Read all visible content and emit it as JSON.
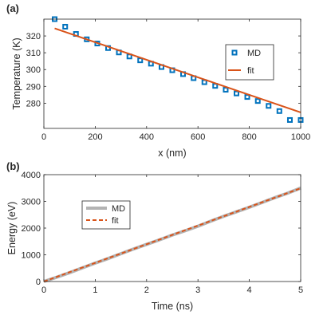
{
  "chart_data": [
    {
      "panel_label": "(a)",
      "type": "scatter",
      "xlabel": "x (nm)",
      "ylabel": "Temperature (K)",
      "xlim": [
        0,
        1000
      ],
      "ylim": [
        265,
        330
      ],
      "xticks": [
        0,
        200,
        400,
        600,
        800,
        1000
      ],
      "yticks": [
        280,
        290,
        300,
        310,
        320
      ],
      "legend_position": "top-right",
      "grid": false,
      "series": [
        {
          "name": "MD",
          "kind": "markers",
          "color": "#0072BD",
          "x": [
            42,
            83,
            125,
            167,
            208,
            250,
            292,
            333,
            375,
            417,
            458,
            500,
            542,
            583,
            625,
            667,
            708,
            750,
            792,
            833,
            875,
            917,
            958,
            1000
          ],
          "y": [
            330.0,
            325.5,
            321.2,
            318.0,
            315.5,
            312.8,
            310.2,
            307.8,
            305.5,
            303.5,
            301.5,
            299.6,
            297.3,
            294.9,
            292.5,
            290.3,
            288.0,
            285.8,
            283.7,
            281.3,
            278.4,
            275.3,
            270.0,
            270.0
          ]
        },
        {
          "name": "fit",
          "kind": "line",
          "color": "#D95319",
          "x": [
            42,
            1000
          ],
          "y": [
            324.5,
            274.5
          ]
        }
      ]
    },
    {
      "panel_label": "(b)",
      "type": "line",
      "xlabel": "Time (ns)",
      "ylabel": "Energy (eV)",
      "xlim": [
        0,
        5
      ],
      "ylim": [
        0,
        4000
      ],
      "xticks": [
        0,
        1,
        2,
        3,
        4,
        5
      ],
      "yticks": [
        0,
        1000,
        2000,
        3000,
        4000
      ],
      "legend_position": "top-left",
      "grid": false,
      "series": [
        {
          "name": "MD",
          "kind": "line",
          "color": "#B3B3B3",
          "x": [
            0,
            0.25,
            0.5,
            0.75,
            1.0,
            1.25,
            1.5,
            1.75,
            2.0,
            2.25,
            2.5,
            2.75,
            3.0,
            3.25,
            3.5,
            3.75,
            4.0,
            4.25,
            4.5,
            4.75,
            5.0
          ],
          "y": [
            0,
            160,
            330,
            510,
            690,
            860,
            1040,
            1220,
            1390,
            1560,
            1740,
            1900,
            2070,
            2260,
            2440,
            2610,
            2780,
            2960,
            3140,
            3310,
            3500
          ]
        },
        {
          "name": "fit",
          "kind": "dashed-line",
          "color": "#D95319",
          "x": [
            0,
            5
          ],
          "y": [
            0,
            3490
          ]
        }
      ]
    }
  ]
}
